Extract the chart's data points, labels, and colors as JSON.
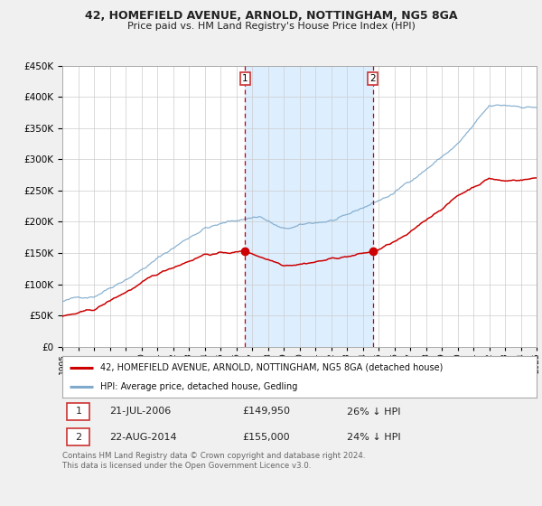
{
  "title1": "42, HOMEFIELD AVENUE, ARNOLD, NOTTINGHAM, NG5 8GA",
  "title2": "Price paid vs. HM Land Registry's House Price Index (HPI)",
  "legend_red": "42, HOMEFIELD AVENUE, ARNOLD, NOTTINGHAM, NG5 8GA (detached house)",
  "legend_blue": "HPI: Average price, detached house, Gedling",
  "marker1_date": "21-JUL-2006",
  "marker1_price": "£149,950",
  "marker1_hpi": "26% ↓ HPI",
  "marker2_date": "22-AUG-2014",
  "marker2_price": "£155,000",
  "marker2_hpi": "24% ↓ HPI",
  "footer": "Contains HM Land Registry data © Crown copyright and database right 2024.\nThis data is licensed under the Open Government Licence v3.0.",
  "fig_bg_color": "#f0f0f0",
  "plot_bg": "#ffffff",
  "shaded_region_color": "#ddeeff",
  "ylim_min": 0,
  "ylim_max": 450000,
  "year_start": 1995,
  "year_end": 2025,
  "marker1_year": 2006.55,
  "marker2_year": 2014.64,
  "red_color": "#cc0000",
  "blue_color": "#7faacc",
  "marker_box_edge": "#cc3333",
  "grid_color": "#cccccc",
  "spine_color": "#aaaaaa",
  "text_color": "#222222",
  "footer_color": "#666666"
}
